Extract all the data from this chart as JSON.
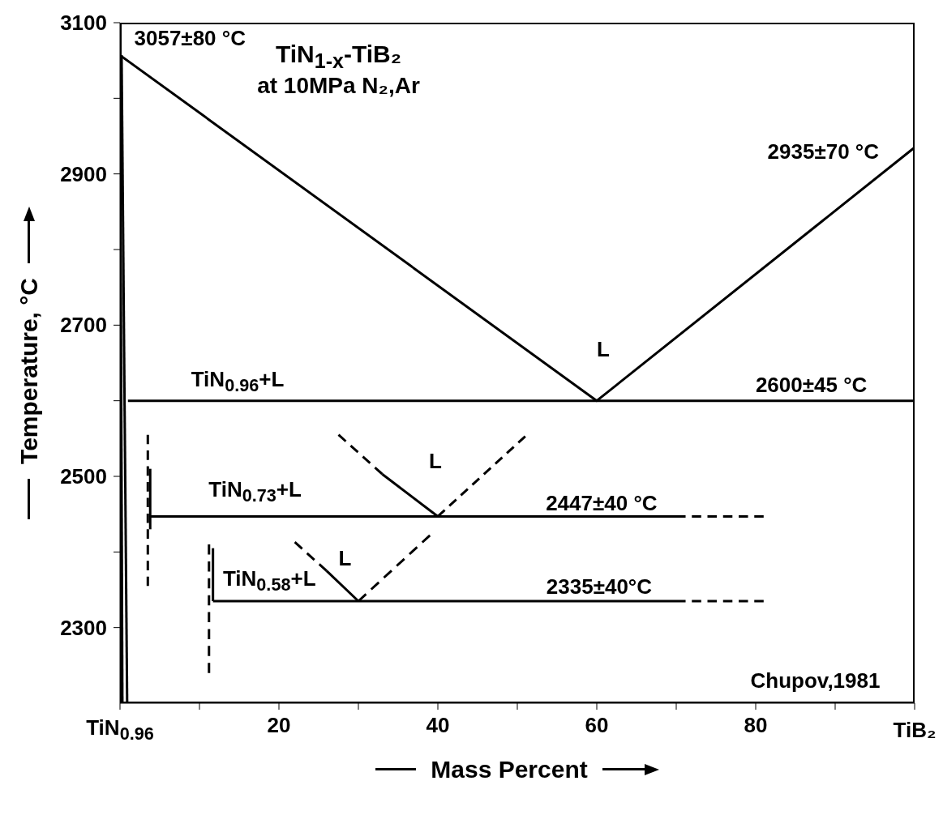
{
  "chart_data": {
    "type": "line",
    "title": "TiN$_{1-x}$-TiB₂",
    "subtitle": "at 10MPa N₂,Ar",
    "xlabel": "Mass Percent",
    "ylabel": "Temperature, °C",
    "xlim": [
      0,
      100
    ],
    "ylim": [
      2200,
      3100
    ],
    "xticks": [
      {
        "value": 0,
        "label": null
      },
      {
        "value": 10,
        "label": null
      },
      20,
      {
        "value": 30,
        "label": null
      },
      40,
      {
        "value": 50,
        "label": null
      },
      60,
      {
        "value": 70,
        "label": null
      },
      80,
      {
        "value": 90,
        "label": null
      },
      {
        "value": 100,
        "label": null
      }
    ],
    "yticks": [
      2300,
      {
        "value": 2400,
        "label": null
      },
      2500,
      {
        "value": 2600,
        "label": null
      },
      2700,
      {
        "value": 2800,
        "label": null
      },
      2900,
      {
        "value": 3000,
        "label": null
      },
      3100
    ],
    "series": [
      {
        "color": "#000000",
        "line_style": "solid",
        "x": [
          0,
          60,
          100
        ],
        "values": [
          3057,
          2600,
          2935
        ]
      },
      {
        "color": "#000000",
        "line_style": "solid",
        "x": [
          1,
          100
        ],
        "values": [
          2600,
          2600
        ]
      },
      {
        "color": "#000000",
        "line_style": "solid",
        "x": [
          0,
          0.3
        ],
        "values": [
          3057,
          2200
        ]
      },
      {
        "color": "#000000",
        "line_style": "solid",
        "x": [
          0.2,
          0.9
        ],
        "values": [
          3057,
          2200
        ]
      },
      {
        "color": "#000000",
        "line_style": "dashed",
        "x": [
          3.5,
          3.5
        ],
        "values": [
          2555,
          2355
        ]
      },
      {
        "color": "#000000",
        "line_style": "solid",
        "x": [
          3.8,
          3.8
        ],
        "values": [
          2510,
          2430
        ]
      },
      {
        "color": "#000000",
        "line_style": "solid",
        "x": [
          3.8,
          70
        ],
        "values": [
          2447,
          2447
        ]
      },
      {
        "color": "#000000",
        "line_style": "dashed",
        "x": [
          70,
          81
        ],
        "values": [
          2447,
          2447
        ]
      },
      {
        "color": "#000000",
        "line_style": "dashed",
        "x": [
          27.5,
          33
        ],
        "values": [
          2555,
          2503
        ]
      },
      {
        "color": "#000000",
        "line_style": "solid",
        "x": [
          33,
          40
        ],
        "values": [
          2503,
          2447
        ]
      },
      {
        "color": "#000000",
        "line_style": "dashed",
        "x": [
          40,
          51
        ],
        "values": [
          2447,
          2553
        ]
      },
      {
        "color": "#000000",
        "line_style": "solid",
        "x": [
          11.7,
          11.7
        ],
        "values": [
          2405,
          2335
        ]
      },
      {
        "color": "#000000",
        "line_style": "dashed",
        "x": [
          11.2,
          11.2
        ],
        "values": [
          2410,
          2240
        ]
      },
      {
        "color": "#000000",
        "line_style": "solid",
        "x": [
          11.7,
          70
        ],
        "values": [
          2335,
          2335
        ]
      },
      {
        "color": "#000000",
        "line_style": "dashed",
        "x": [
          70,
          81
        ],
        "values": [
          2335,
          2335
        ]
      },
      {
        "color": "#000000",
        "line_style": "dashed",
        "x": [
          22,
          26
        ],
        "values": [
          2413,
          2375
        ]
      },
      {
        "color": "#000000",
        "line_style": "solid",
        "x": [
          26,
          30
        ],
        "values": [
          2375,
          2335
        ]
      },
      {
        "color": "#000000",
        "line_style": "dashed",
        "x": [
          30,
          39
        ],
        "values": [
          2335,
          2422
        ]
      }
    ],
    "annotations": [
      "3057±80 °C",
      "2935±70 °C",
      "L",
      "TiN$_{0.96}$+L",
      "2600±45 °C",
      "L",
      "TiN$_{0.73}$+L",
      "2447±40 °C",
      "L",
      "TiN$_{0.58}$+L",
      "2335±40°C",
      "Chupov,1981",
      "TiN$_{0.96}$",
      "TiB₂"
    ]
  }
}
